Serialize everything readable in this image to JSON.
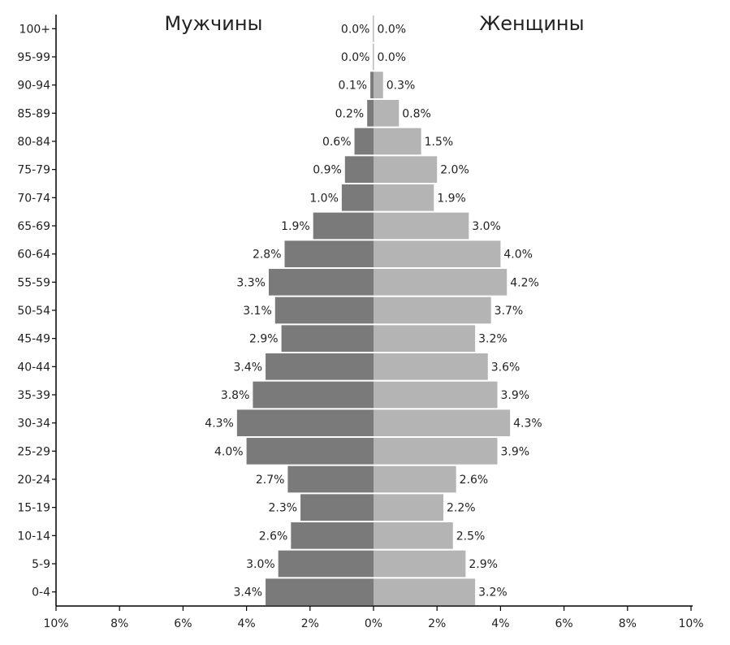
{
  "chart_data": {
    "type": "bar",
    "orientation": "horizontal-population-pyramid",
    "categories": [
      "0-4",
      "5-9",
      "10-14",
      "15-19",
      "20-24",
      "25-29",
      "30-34",
      "35-39",
      "40-44",
      "45-49",
      "50-54",
      "55-59",
      "60-64",
      "65-69",
      "70-74",
      "75-79",
      "80-84",
      "85-89",
      "90-94",
      "95-99",
      "100+"
    ],
    "series": [
      {
        "name": "Мужчины",
        "color": "#7a7a7a",
        "values": [
          3.4,
          3.0,
          2.6,
          2.3,
          2.7,
          4.0,
          4.3,
          3.8,
          3.4,
          2.9,
          3.1,
          3.3,
          2.8,
          1.9,
          1.0,
          0.9,
          0.6,
          0.2,
          0.1,
          0.0,
          0.0
        ],
        "labels": [
          "3.4%",
          "3.0%",
          "2.6%",
          "2.3%",
          "2.7%",
          "4.0%",
          "4.3%",
          "3.8%",
          "3.4%",
          "2.9%",
          "3.1%",
          "3.3%",
          "2.8%",
          "1.9%",
          "1.0%",
          "0.9%",
          "0.6%",
          "0.2%",
          "0.1%",
          "0.0%",
          "0.0%"
        ]
      },
      {
        "name": "Женщины",
        "color": "#b4b4b4",
        "values": [
          3.2,
          2.9,
          2.5,
          2.2,
          2.6,
          3.9,
          4.3,
          3.9,
          3.6,
          3.2,
          3.7,
          4.2,
          4.0,
          3.0,
          1.9,
          2.0,
          1.5,
          0.8,
          0.3,
          0.0,
          0.0
        ],
        "labels": [
          "3.2%",
          "2.9%",
          "2.5%",
          "2.2%",
          "2.6%",
          "3.9%",
          "4.3%",
          "3.9%",
          "3.6%",
          "3.2%",
          "3.7%",
          "4.2%",
          "4.0%",
          "3.0%",
          "1.9%",
          "2.0%",
          "1.5%",
          "0.8%",
          "0.3%",
          "0.0%",
          "0.0%"
        ]
      }
    ],
    "x_ticks": [
      {
        "value": -10,
        "label": "10%"
      },
      {
        "value": -8,
        "label": "8%"
      },
      {
        "value": -6,
        "label": "6%"
      },
      {
        "value": -4,
        "label": "4%"
      },
      {
        "value": -2,
        "label": "2%"
      },
      {
        "value": 0,
        "label": "0%"
      },
      {
        "value": 2,
        "label": "2%"
      },
      {
        "value": 4,
        "label": "4%"
      },
      {
        "value": 6,
        "label": "6%"
      },
      {
        "value": 8,
        "label": "8%"
      },
      {
        "value": 10,
        "label": "10%"
      }
    ],
    "xlim": [
      -10,
      10
    ],
    "grid": false
  }
}
